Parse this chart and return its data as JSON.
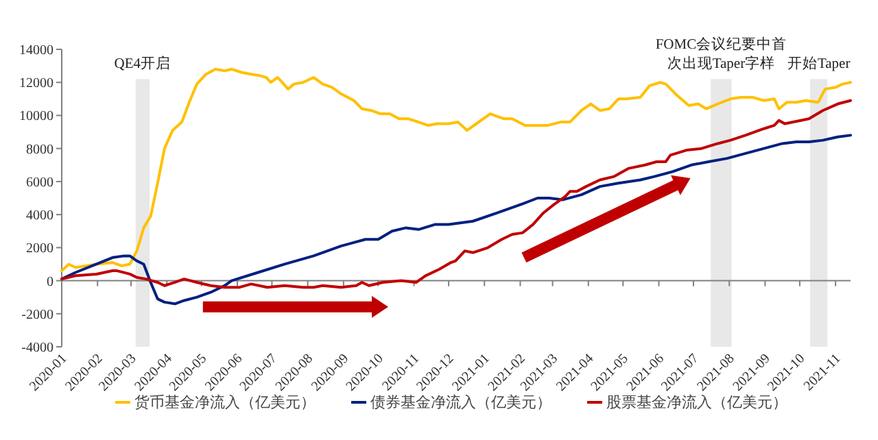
{
  "chart_data": {
    "type": "line",
    "legend": "bottom",
    "xlim": [
      "2020-01-01",
      "2021-11-14"
    ],
    "xticks": [
      "2020-01",
      "2020-02",
      "2020-03",
      "2020-04",
      "2020-05",
      "2020-06",
      "2020-07",
      "2020-08",
      "2020-09",
      "2020-10",
      "2020-11",
      "2020-12",
      "2021-01",
      "2021-02",
      "2021-03",
      "2021-04",
      "2021-05",
      "2021-06",
      "2021-07",
      "2021-08",
      "2021-09",
      "2021-10",
      "2021-11"
    ],
    "ylim": [
      -4000,
      14000
    ],
    "yticks": [
      -4000,
      -2000,
      0,
      2000,
      4000,
      6000,
      8000,
      10000,
      12000,
      14000
    ],
    "bands": [
      {
        "axis": "x",
        "from": "2020-03-05",
        "to": "2020-03-17",
        "label": "QE4开启",
        "color": "#e8e8e8"
      },
      {
        "axis": "x",
        "from": "2021-07-16",
        "to": "2021-08-03",
        "label": "FOMC会议纪要中首次出现Taper字样",
        "color": "#e8e8e8"
      },
      {
        "axis": "x",
        "from": "2021-10-10",
        "to": "2021-10-25",
        "label": "开始Taper",
        "color": "#e8e8e8"
      }
    ],
    "series": [
      {
        "name": "货币基金净流入（亿美元）",
        "color": "#ffc000",
        "x": [
          "2020-01-01",
          "2020-01-07",
          "2020-01-13",
          "2020-01-31",
          "2020-02-14",
          "2020-02-22",
          "2020-02-29",
          "2020-03-06",
          "2020-03-12",
          "2020-03-18",
          "2020-03-24",
          "2020-03-30",
          "2020-04-06",
          "2020-04-14",
          "2020-04-21",
          "2020-04-27",
          "2020-05-05",
          "2020-05-13",
          "2020-05-21",
          "2020-05-27",
          "2020-06-05",
          "2020-06-13",
          "2020-06-21",
          "2020-06-26",
          "2020-06-30",
          "2020-07-06",
          "2020-07-15",
          "2020-07-20",
          "2020-07-28",
          "2020-08-06",
          "2020-08-14",
          "2020-08-22",
          "2020-08-30",
          "2020-09-10",
          "2020-09-17",
          "2020-09-25",
          "2020-10-03",
          "2020-10-11",
          "2020-10-19",
          "2020-10-27",
          "2020-11-05",
          "2020-11-13",
          "2020-11-21",
          "2020-12-01",
          "2020-12-09",
          "2020-12-17",
          "2020-12-25",
          "2021-01-06",
          "2021-01-18",
          "2021-01-25",
          "2021-02-05",
          "2021-02-16",
          "2021-02-25",
          "2021-03-08",
          "2021-03-16",
          "2021-03-26",
          "2021-04-03",
          "2021-04-11",
          "2021-04-19",
          "2021-04-27",
          "2021-05-04",
          "2021-05-16",
          "2021-05-24",
          "2021-06-02",
          "2021-06-07",
          "2021-06-17",
          "2021-06-27",
          "2021-07-05",
          "2021-07-12",
          "2021-07-22",
          "2021-08-02",
          "2021-08-11",
          "2021-08-21",
          "2021-08-31",
          "2021-09-09",
          "2021-09-13",
          "2021-09-20",
          "2021-09-28",
          "2021-10-06",
          "2021-10-17",
          "2021-10-23",
          "2021-11-01",
          "2021-11-07",
          "2021-11-14"
        ],
        "values": [
          600,
          1000,
          800,
          1000,
          1100,
          900,
          1000,
          1800,
          3200,
          3900,
          5900,
          8000,
          9100,
          9600,
          10900,
          11900,
          12500,
          12800,
          12700,
          12800,
          12600,
          12500,
          12400,
          12300,
          12000,
          12300,
          11600,
          11900,
          12000,
          12300,
          11900,
          11700,
          11300,
          10900,
          10400,
          10300,
          10100,
          10100,
          9800,
          9800,
          9600,
          9400,
          9500,
          9500,
          9600,
          9100,
          9500,
          10100,
          9800,
          9800,
          9400,
          9400,
          9400,
          9600,
          9600,
          10300,
          10700,
          10300,
          10400,
          11000,
          11000,
          11100,
          11800,
          12000,
          11900,
          11200,
          10600,
          10700,
          10400,
          10700,
          11000,
          11100,
          11100,
          10900,
          11000,
          10400,
          10800,
          10800,
          10900,
          10800,
          11600,
          11700,
          11900,
          12000
        ]
      },
      {
        "name": "债券基金净流入（亿美元）",
        "color": "#002080",
        "x": [
          "2020-01-01",
          "2020-01-13",
          "2020-01-31",
          "2020-02-14",
          "2020-02-24",
          "2020-02-29",
          "2020-03-06",
          "2020-03-12",
          "2020-03-18",
          "2020-03-24",
          "2020-03-30",
          "2020-04-08",
          "2020-04-16",
          "2020-04-27",
          "2020-05-09",
          "2020-05-21",
          "2020-05-27",
          "2020-06-19",
          "2020-07-12",
          "2020-08-06",
          "2020-08-30",
          "2020-09-20",
          "2020-10-01",
          "2020-10-13",
          "2020-10-25",
          "2020-11-05",
          "2020-11-19",
          "2020-12-01",
          "2020-12-22",
          "2021-01-12",
          "2021-02-01",
          "2021-02-16",
          "2021-02-26",
          "2021-03-10",
          "2021-03-26",
          "2021-04-11",
          "2021-04-27",
          "2021-05-16",
          "2021-05-28",
          "2021-06-13",
          "2021-06-29",
          "2021-07-14",
          "2021-07-30",
          "2021-08-15",
          "2021-08-31",
          "2021-09-16",
          "2021-09-28",
          "2021-10-09",
          "2021-10-21",
          "2021-11-03",
          "2021-11-14"
        ],
        "values": [
          100,
          500,
          1000,
          1400,
          1500,
          1500,
          1200,
          1000,
          -100,
          -1100,
          -1300,
          -1400,
          -1200,
          -1000,
          -700,
          -300,
          0,
          500,
          1000,
          1500,
          2100,
          2500,
          2500,
          3000,
          3200,
          3100,
          3400,
          3400,
          3600,
          4100,
          4600,
          5000,
          5000,
          4900,
          5200,
          5700,
          5900,
          6100,
          6300,
          6600,
          7000,
          7200,
          7400,
          7700,
          8000,
          8300,
          8400,
          8400,
          8500,
          8700,
          8800
        ]
      },
      {
        "name": "股票基金净流入（亿美元）",
        "color": "#c00000",
        "x": [
          "2020-01-01",
          "2020-01-13",
          "2020-01-31",
          "2020-02-14",
          "2020-02-18",
          "2020-02-29",
          "2020-03-06",
          "2020-03-14",
          "2020-03-24",
          "2020-03-30",
          "2020-04-08",
          "2020-04-16",
          "2020-04-27",
          "2020-05-09",
          "2020-05-21",
          "2020-06-03",
          "2020-06-13",
          "2020-06-27",
          "2020-07-12",
          "2020-07-28",
          "2020-08-06",
          "2020-08-14",
          "2020-08-30",
          "2020-09-12",
          "2020-09-17",
          "2020-09-23",
          "2020-10-05",
          "2020-10-21",
          "2020-11-03",
          "2020-11-11",
          "2020-11-23",
          "2020-12-03",
          "2020-12-07",
          "2020-12-15",
          "2020-12-22",
          "2021-01-04",
          "2021-01-16",
          "2021-01-25",
          "2021-02-03",
          "2021-02-12",
          "2021-02-21",
          "2021-03-02",
          "2021-03-12",
          "2021-03-16",
          "2021-03-22",
          "2021-03-30",
          "2021-04-11",
          "2021-04-23",
          "2021-05-06",
          "2021-05-20",
          "2021-05-30",
          "2021-06-07",
          "2021-06-11",
          "2021-06-25",
          "2021-07-08",
          "2021-07-22",
          "2021-08-02",
          "2021-08-15",
          "2021-08-31",
          "2021-09-09",
          "2021-09-13",
          "2021-09-18",
          "2021-10-02",
          "2021-10-09",
          "2021-10-21",
          "2021-11-03",
          "2021-11-14"
        ],
        "values": [
          100,
          300,
          400,
          600,
          600,
          400,
          200,
          100,
          -100,
          -300,
          -100,
          100,
          -100,
          -300,
          -400,
          -400,
          -200,
          -400,
          -300,
          -400,
          -400,
          -300,
          -400,
          -300,
          -100,
          -300,
          -100,
          0,
          -100,
          300,
          700,
          1100,
          1200,
          1800,
          1700,
          2000,
          2500,
          2800,
          2900,
          3400,
          4100,
          4600,
          5100,
          5400,
          5400,
          5700,
          6100,
          6300,
          6800,
          7000,
          7200,
          7200,
          7600,
          7900,
          8000,
          8300,
          8500,
          8800,
          9200,
          9400,
          9700,
          9500,
          9700,
          9800,
          10300,
          10700,
          10900
        ]
      }
    ]
  }
}
